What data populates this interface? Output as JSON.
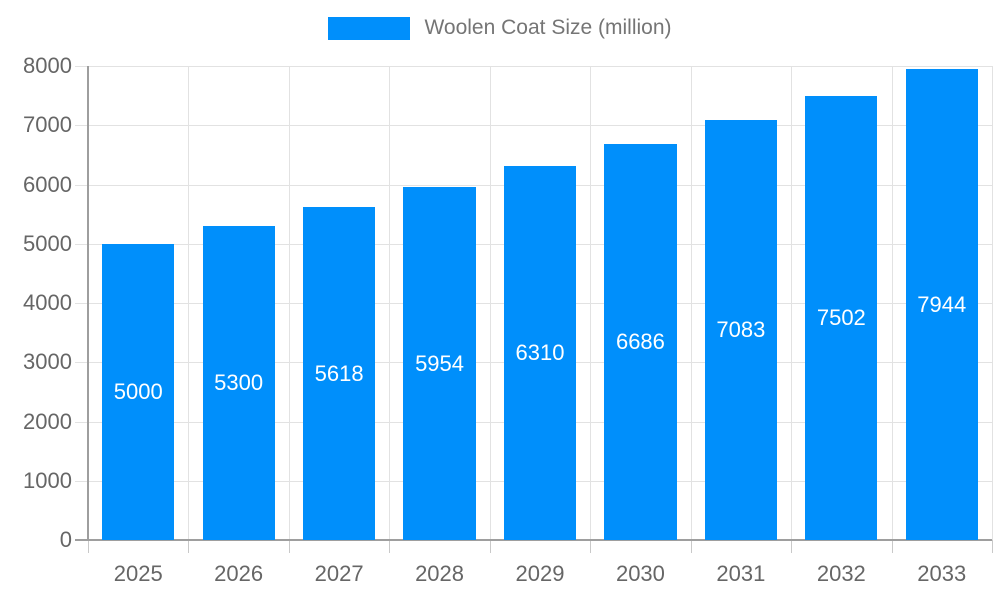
{
  "legend": {
    "label": "Woolen Coat Size (million)"
  },
  "colors": {
    "bar": "#008FFB",
    "axis_label": "#666666",
    "legend_text": "#757575",
    "grid": "#e2e2e2",
    "tick": "#c9c9c9",
    "axis_line": "#9e9e9e",
    "value_label": "#ffffff",
    "background": "#ffffff"
  },
  "chart_data": {
    "type": "bar",
    "title": "",
    "legend_label": "Woolen Coat Size (million)",
    "legend_position": "top",
    "categories": [
      "2025",
      "2026",
      "2027",
      "2028",
      "2029",
      "2030",
      "2031",
      "2032",
      "2033"
    ],
    "values": [
      5000,
      5300,
      5618,
      5954,
      6310,
      6686,
      7083,
      7502,
      7944
    ],
    "series": [
      {
        "name": "Woolen Coat Size (million)",
        "values": [
          5000,
          5300,
          5618,
          5954,
          6310,
          6686,
          7083,
          7502,
          7944
        ]
      }
    ],
    "xlabel": "",
    "ylabel": "",
    "ylim": [
      0,
      8000
    ],
    "ytick_step": 1000,
    "ytick_labels": [
      "0",
      "1000",
      "2000",
      "3000",
      "4000",
      "5000",
      "6000",
      "7000",
      "8000"
    ],
    "grid": true,
    "value_labels": "inside-center"
  }
}
